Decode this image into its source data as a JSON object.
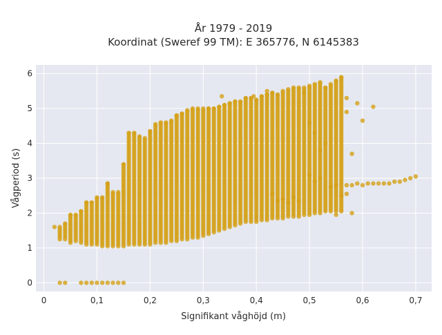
{
  "chart_data": {
    "type": "scatter",
    "title_line1": "År 1979 - 2019",
    "title_line2": "Koordinat (Sweref 99 TM): E 365776, N 6145383",
    "xlabel": "Signifikant våghöjd (m)",
    "ylabel": "Vågperiod (s)",
    "xlim": [
      -0.015,
      0.73
    ],
    "ylim": [
      -0.25,
      6.25
    ],
    "x_ticks": [
      0,
      0.1,
      0.2,
      0.3,
      0.4,
      0.5,
      0.6,
      0.7
    ],
    "x_tick_labels": [
      "0",
      "0,1",
      "0,2",
      "0,3",
      "0,4",
      "0,5",
      "0,6",
      "0,7"
    ],
    "y_ticks": [
      0,
      1,
      2,
      3,
      4,
      5,
      6
    ],
    "y_tick_labels": [
      "0",
      "1",
      "2",
      "3",
      "4",
      "5",
      "6"
    ],
    "grid": true,
    "marker_color": "#d4a017",
    "plot_bg_color": "#e5e8f0",
    "series": [
      {
        "columns": [
          [
            0.02,
            1.6,
            1.6
          ],
          [
            0.03,
            1.25,
            1.6
          ],
          [
            0.04,
            1.25,
            1.7
          ],
          [
            0.05,
            1.15,
            1.95
          ],
          [
            0.06,
            1.2,
            1.95
          ],
          [
            0.07,
            1.15,
            2.05
          ],
          [
            0.08,
            1.1,
            2.3
          ],
          [
            0.09,
            1.1,
            2.3
          ],
          [
            0.1,
            1.1,
            2.45
          ],
          [
            0.11,
            1.05,
            2.45
          ],
          [
            0.12,
            1.05,
            2.85
          ],
          [
            0.13,
            1.05,
            2.6
          ],
          [
            0.14,
            1.05,
            2.6
          ],
          [
            0.15,
            1.05,
            3.4
          ],
          [
            0.16,
            1.1,
            4.3
          ],
          [
            0.17,
            1.1,
            4.3
          ],
          [
            0.18,
            1.1,
            4.2
          ],
          [
            0.19,
            1.1,
            4.15
          ],
          [
            0.2,
            1.1,
            4.35
          ],
          [
            0.21,
            1.15,
            4.55
          ],
          [
            0.22,
            1.15,
            4.6
          ],
          [
            0.23,
            1.15,
            4.6
          ],
          [
            0.24,
            1.2,
            4.65
          ],
          [
            0.25,
            1.2,
            4.8
          ],
          [
            0.26,
            1.25,
            4.85
          ],
          [
            0.27,
            1.25,
            4.95
          ],
          [
            0.28,
            1.3,
            5.0
          ],
          [
            0.29,
            1.3,
            5.0
          ],
          [
            0.3,
            1.35,
            5.0
          ],
          [
            0.31,
            1.4,
            5.0
          ],
          [
            0.32,
            1.45,
            5.0
          ],
          [
            0.33,
            1.5,
            5.05
          ],
          [
            0.34,
            1.55,
            5.1
          ],
          [
            0.35,
            1.6,
            5.15
          ],
          [
            0.36,
            1.65,
            5.2
          ],
          [
            0.37,
            1.7,
            5.2
          ],
          [
            0.38,
            1.75,
            5.3
          ],
          [
            0.39,
            1.75,
            5.3
          ],
          [
            0.4,
            1.75,
            5.25
          ],
          [
            0.41,
            1.8,
            5.35
          ],
          [
            0.42,
            1.8,
            5.4
          ],
          [
            0.43,
            1.85,
            5.45
          ],
          [
            0.44,
            1.85,
            5.4
          ],
          [
            0.45,
            1.85,
            5.5
          ],
          [
            0.46,
            1.9,
            5.55
          ],
          [
            0.47,
            1.9,
            5.6
          ],
          [
            0.48,
            1.9,
            5.6
          ],
          [
            0.49,
            1.95,
            5.6
          ],
          [
            0.5,
            1.95,
            5.65
          ],
          [
            0.51,
            2.0,
            5.7
          ],
          [
            0.52,
            2.0,
            5.75
          ],
          [
            0.53,
            2.05,
            5.6
          ],
          [
            0.54,
            2.05,
            5.7
          ],
          [
            0.55,
            2.05,
            5.8
          ],
          [
            0.56,
            2.1,
            5.9
          ]
        ],
        "points": [
          [
            0.03,
            0.0
          ],
          [
            0.04,
            0.0
          ],
          [
            0.07,
            0.0
          ],
          [
            0.08,
            0.0
          ],
          [
            0.09,
            0.0
          ],
          [
            0.1,
            0.0
          ],
          [
            0.11,
            0.0
          ],
          [
            0.12,
            0.0
          ],
          [
            0.13,
            0.0
          ],
          [
            0.14,
            0.0
          ],
          [
            0.15,
            0.0
          ],
          [
            0.335,
            5.35
          ],
          [
            0.395,
            5.35
          ],
          [
            0.42,
            5.5
          ],
          [
            0.49,
            5.45
          ],
          [
            0.57,
            2.8
          ],
          [
            0.57,
            2.55
          ],
          [
            0.57,
            4.9
          ],
          [
            0.57,
            5.3
          ],
          [
            0.58,
            2.8
          ],
          [
            0.58,
            2.0
          ],
          [
            0.58,
            3.7
          ],
          [
            0.59,
            2.85
          ],
          [
            0.59,
            5.15
          ],
          [
            0.6,
            2.8
          ],
          [
            0.6,
            4.65
          ],
          [
            0.61,
            2.85
          ],
          [
            0.62,
            2.85
          ],
          [
            0.62,
            5.05
          ],
          [
            0.63,
            2.85
          ],
          [
            0.64,
            2.85
          ],
          [
            0.65,
            2.85
          ],
          [
            0.66,
            2.9
          ],
          [
            0.67,
            2.9
          ],
          [
            0.68,
            2.95
          ],
          [
            0.69,
            3.0
          ],
          [
            0.7,
            3.05
          ],
          [
            0.52,
            3.0
          ],
          [
            0.54,
            2.75
          ],
          [
            0.55,
            2.8
          ],
          [
            0.56,
            2.5
          ],
          [
            0.55,
            1.95
          ],
          [
            0.56,
            2.05
          ],
          [
            0.43,
            2.55
          ],
          [
            0.44,
            2.35
          ],
          [
            0.45,
            2.4
          ],
          [
            0.46,
            2.3
          ],
          [
            0.47,
            2.45
          ],
          [
            0.48,
            2.35
          ],
          [
            0.5,
            4.6
          ],
          [
            0.51,
            4.3
          ],
          [
            0.52,
            3.8
          ],
          [
            0.5,
            3.1
          ],
          [
            0.51,
            2.9
          ],
          [
            0.53,
            4.0
          ]
        ]
      }
    ]
  }
}
